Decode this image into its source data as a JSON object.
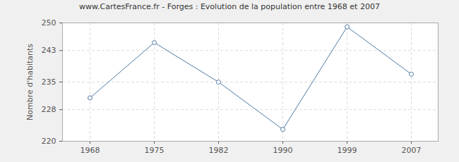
{
  "chart_data": {
    "type": "line",
    "title": "www.CartesFrance.fr - Forges : Evolution de la population entre 1968 et 2007",
    "y_label": "Nombre d'habitants",
    "categories": [
      "1968",
      "1975",
      "1982",
      "1990",
      "1999",
      "2007"
    ],
    "values": [
      231,
      245,
      235,
      223,
      249,
      237
    ],
    "color": "#4f7aa6",
    "marker": "circle",
    "ylim": [
      220,
      250
    ],
    "yticks": [
      220,
      228,
      235,
      243,
      250
    ],
    "grid": true
  }
}
